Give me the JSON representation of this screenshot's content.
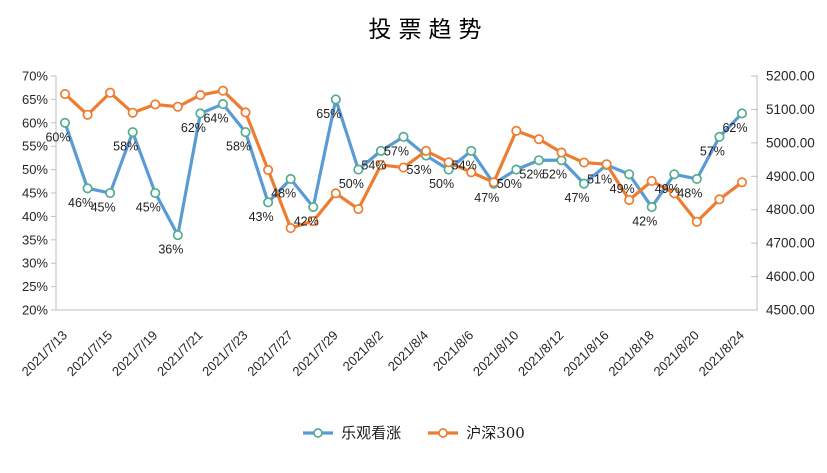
{
  "chart_data": {
    "type": "line",
    "title": "投票趋势",
    "legend_position": "bottom",
    "grid": "none",
    "background": "#FFFFFF",
    "axis_line_color": "#BFBFBF",
    "axis_text_color": "#262626",
    "data_label_color": "#1f1f1f",
    "x_point_count": 31,
    "x_label_interval": 2,
    "x_tick_labels": [
      "2021/7/13",
      "2021/7/15",
      "2021/7/19",
      "2021/7/21",
      "2021/7/23",
      "2021/7/27",
      "2021/7/29",
      "2021/8/2",
      "2021/8/4",
      "2021/8/6",
      "2021/8/10",
      "2021/8/12",
      "2021/8/16",
      "2021/8/18",
      "2021/8/20",
      "2021/8/24"
    ],
    "left_axis": {
      "min": 20,
      "max": 70,
      "step": 5,
      "tick_labels": [
        "70%",
        "65%",
        "60%",
        "55%",
        "50%",
        "45%",
        "40%",
        "35%",
        "30%",
        "25%",
        "20%"
      ]
    },
    "right_axis": {
      "min": 4500,
      "max": 5200,
      "step": 100,
      "tick_labels": [
        "5200.00",
        "5100.00",
        "5000.00",
        "4900.00",
        "4800.00",
        "4700.00",
        "4600.00",
        "4500.00"
      ]
    },
    "series": [
      {
        "name": "乐观看涨",
        "yaxis": "left",
        "color": "#5B9BD5",
        "marker_fill": "#FFFFFF",
        "marker_outline": "#52AE8E",
        "show_data_labels": true,
        "data_label_suffix": "%",
        "values": [
          60,
          46,
          45,
          58,
          45,
          36,
          62,
          64,
          58,
          43,
          48,
          42,
          65,
          50,
          54,
          57,
          53,
          50,
          54,
          47,
          50,
          52,
          52,
          47,
          51,
          49,
          42,
          49,
          48,
          57,
          62
        ]
      },
      {
        "name": "沪深300",
        "yaxis": "right",
        "color": "#ED7D31",
        "marker_fill": "#FFFFFF",
        "marker_outline": "#ED7D31",
        "show_data_labels": false,
        "data_label_suffix": "",
        "values": [
          5146,
          5084,
          5150,
          5090,
          5115,
          5108,
          5143,
          5156,
          5091,
          4919,
          4745,
          4766,
          4849,
          4802,
          4934,
          4926,
          4976,
          4942,
          4912,
          4882,
          5036,
          5011,
          4971,
          4941,
          4936,
          4829,
          4886,
          4849,
          4764,
          4831,
          4882
        ]
      }
    ]
  }
}
